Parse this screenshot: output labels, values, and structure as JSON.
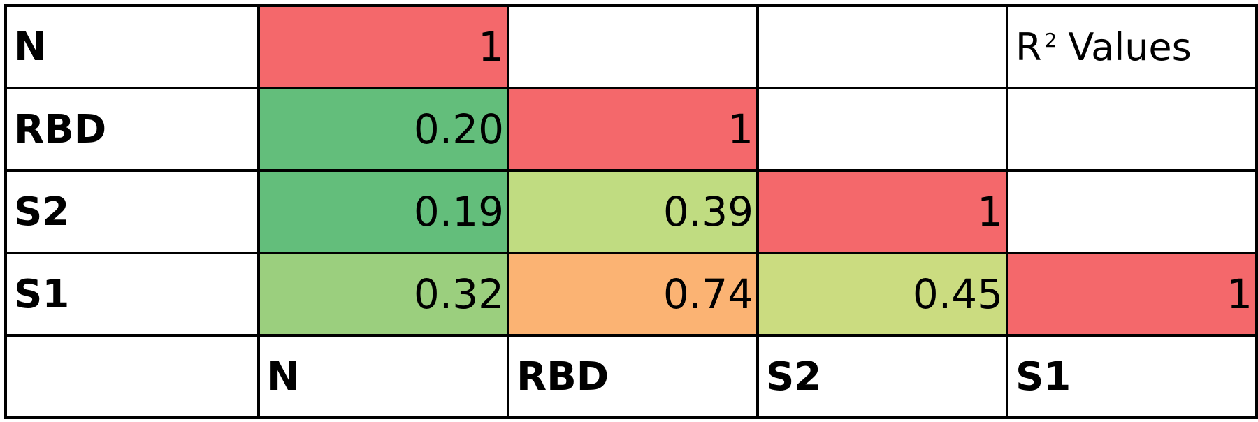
{
  "chart_data": {
    "type": "heatmap",
    "title": "",
    "annotation": {
      "prefix": "R",
      "superscript": "2",
      "suffix": "Values"
    },
    "row_labels": [
      "N",
      "RBD",
      "S2",
      "S1"
    ],
    "column_labels": [
      "N",
      "RBD",
      "S2",
      "S1"
    ],
    "cells": [
      [
        {
          "text": "1",
          "value": 1,
          "color": "#f4686b"
        },
        null,
        null,
        null
      ],
      [
        {
          "text": "0.20",
          "value": 0.2,
          "color": "#63be7b"
        },
        {
          "text": "1",
          "value": 1,
          "color": "#f4686b"
        },
        null,
        null
      ],
      [
        {
          "text": "0.19",
          "value": 0.19,
          "color": "#63be7b"
        },
        {
          "text": "0.39",
          "value": 0.39,
          "color": "#c0dc81"
        },
        {
          "text": "1",
          "value": 1,
          "color": "#f4686b"
        },
        null
      ],
      [
        {
          "text": "0.32",
          "value": 0.32,
          "color": "#9bcf7e"
        },
        {
          "text": "0.74",
          "value": 0.74,
          "color": "#fbb373"
        },
        {
          "text": "0.45",
          "value": 0.45,
          "color": "#cbdc80"
        },
        {
          "text": "1",
          "value": 1,
          "color": "#f4686b"
        }
      ]
    ]
  }
}
